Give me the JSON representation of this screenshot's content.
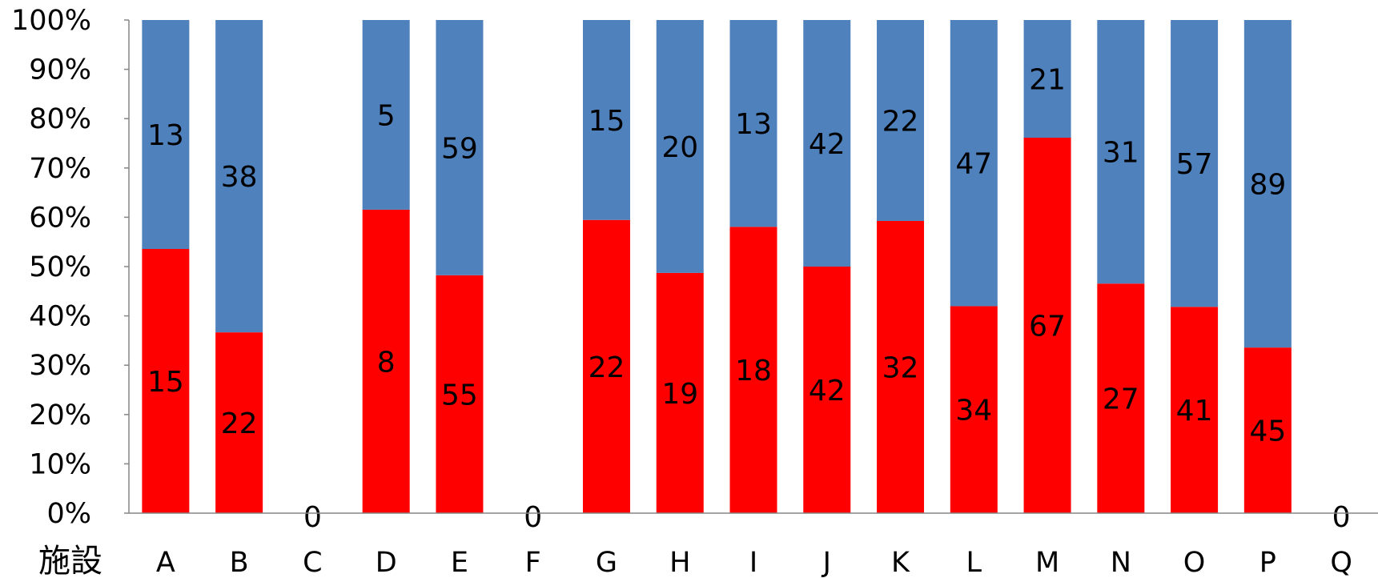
{
  "chart_data": {
    "type": "bar",
    "stacked": "percent",
    "xlabel": "施設",
    "categories": [
      "A",
      "B",
      "C",
      "D",
      "E",
      "F",
      "G",
      "H",
      "I",
      "J",
      "K",
      "L",
      "M",
      "N",
      "O",
      "P",
      "Q"
    ],
    "series": [
      {
        "values": [
          15,
          22,
          0,
          8,
          55,
          0,
          22,
          19,
          18,
          42,
          32,
          34,
          67,
          27,
          41,
          45,
          0
        ],
        "color": "#ff0000"
      },
      {
        "values": [
          13,
          38,
          0,
          5,
          59,
          0,
          15,
          20,
          13,
          42,
          22,
          47,
          21,
          31,
          57,
          89,
          0
        ],
        "color": "#4f81bd"
      }
    ],
    "zero_label": "0",
    "y_ticks": [
      "0%",
      "10%",
      "20%",
      "30%",
      "40%",
      "50%",
      "60%",
      "70%",
      "80%",
      "90%",
      "100%"
    ],
    "ylim": [
      0,
      100
    ],
    "grid": false,
    "legend": "none"
  }
}
